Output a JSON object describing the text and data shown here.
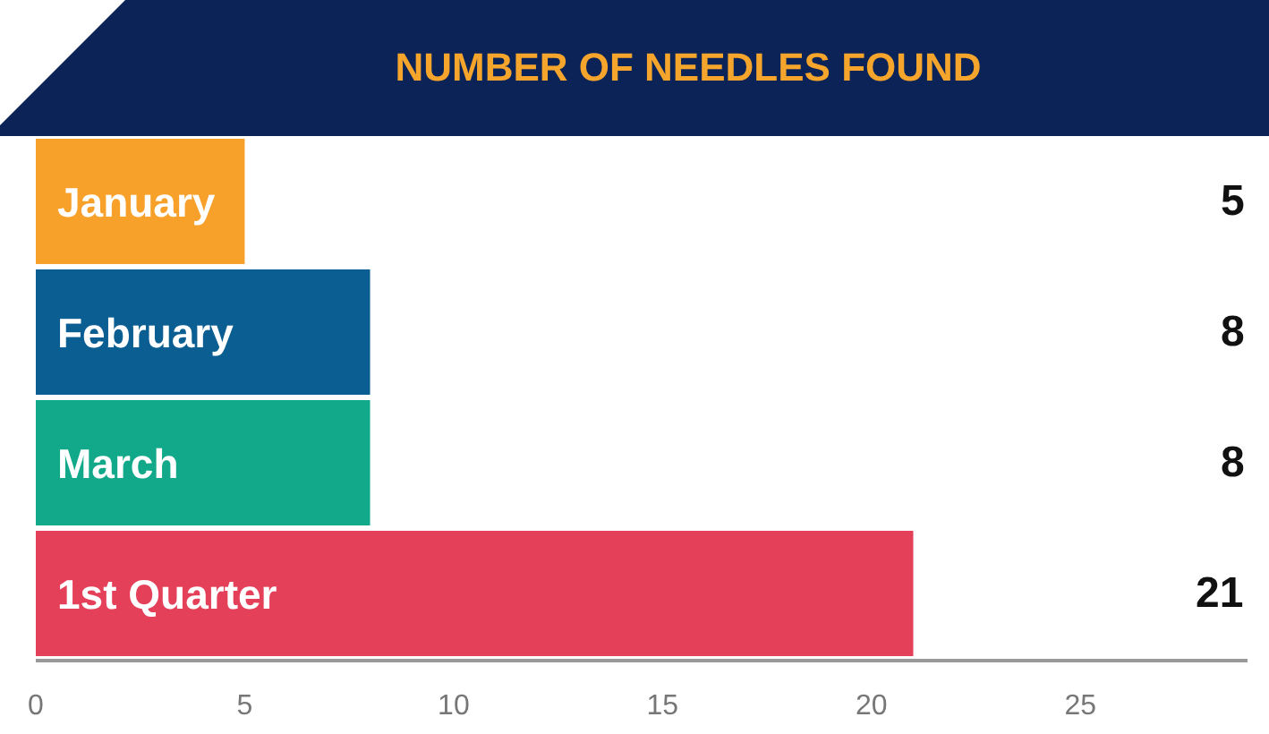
{
  "chart_data": {
    "type": "bar",
    "orientation": "horizontal",
    "title": "NUMBER OF NEEDLES FOUND",
    "categories": [
      "January",
      "February",
      "March",
      "1st Quarter"
    ],
    "values": [
      5,
      8,
      8,
      21
    ],
    "colors": [
      "#f7a12b",
      "#0b5e92",
      "#12a98b",
      "#e5405a"
    ],
    "xlim": [
      0,
      29
    ],
    "xticks": [
      0,
      5,
      10,
      15,
      20,
      25
    ],
    "data_labels": true,
    "grid": false,
    "legend": false,
    "tick_labels": "x"
  }
}
